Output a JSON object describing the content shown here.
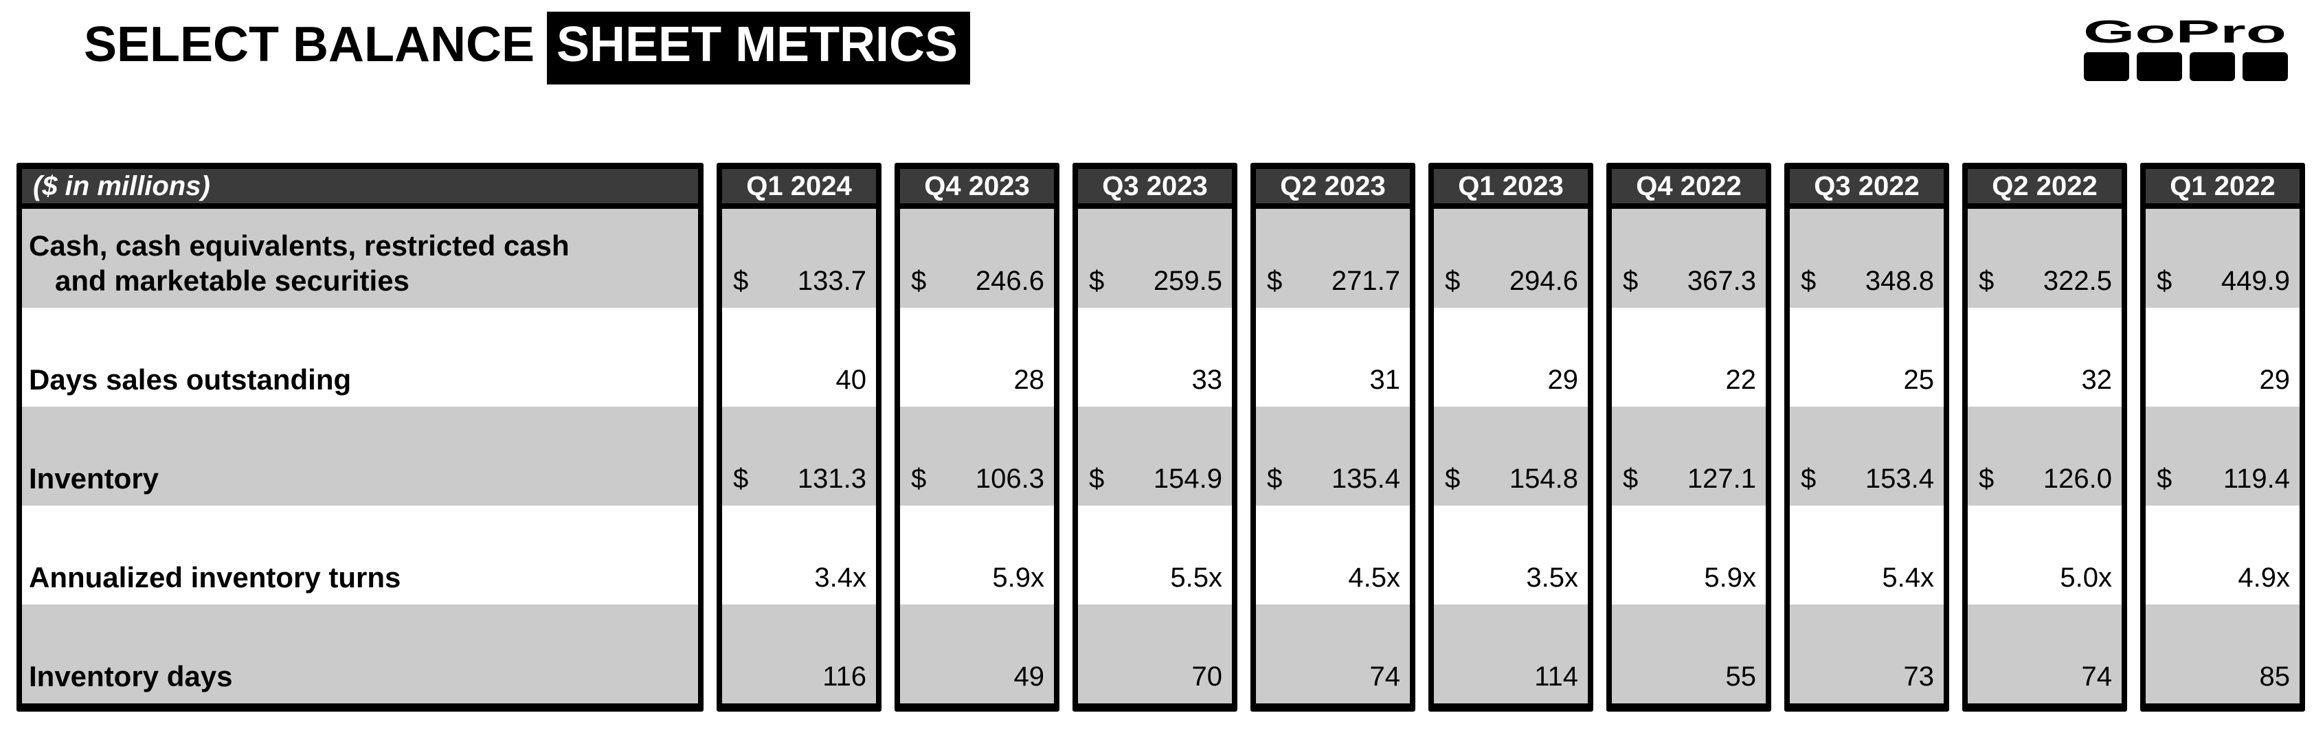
{
  "slide": {
    "title_plain": "SELECT BALANCE",
    "title_highlight": "SHEET METRICS"
  },
  "logo": {
    "wordmark": "GoPro"
  },
  "table": {
    "corner_label": "($ in millions)",
    "currency_symbol": "$",
    "columns": [
      "Q1 2024",
      "Q4 2023",
      "Q3 2023",
      "Q2 2023",
      "Q1 2023",
      "Q4 2022",
      "Q3 2022",
      "Q2 2022",
      "Q1 2022"
    ],
    "rows": [
      {
        "label_lines": [
          "Cash, cash equivalents, restricted cash",
          "and marketable securities"
        ],
        "currency": true,
        "values": [
          "133.7",
          "246.6",
          "259.5",
          "271.7",
          "294.6",
          "367.3",
          "348.8",
          "322.5",
          "449.9"
        ]
      },
      {
        "label_lines": [
          "Days sales outstanding"
        ],
        "currency": false,
        "values": [
          "40",
          "28",
          "33",
          "31",
          "29",
          "22",
          "25",
          "32",
          "29"
        ]
      },
      {
        "label_lines": [
          "Inventory"
        ],
        "currency": true,
        "values": [
          "131.3",
          "106.3",
          "154.9",
          "135.4",
          "154.8",
          "127.1",
          "153.4",
          "126.0",
          "119.4"
        ]
      },
      {
        "label_lines": [
          "Annualized inventory turns"
        ],
        "currency": false,
        "values": [
          "3.4x",
          "5.9x",
          "5.5x",
          "4.5x",
          "3.5x",
          "5.9x",
          "5.4x",
          "5.0x",
          "4.9x"
        ]
      },
      {
        "label_lines": [
          "Inventory days"
        ],
        "currency": false,
        "values": [
          "116",
          "49",
          "70",
          "74",
          "114",
          "55",
          "73",
          "74",
          "85"
        ]
      }
    ]
  },
  "colors": {
    "header_bg": "#3b3b3b",
    "band_gray": "#cbcbcb",
    "border": "#000000",
    "highlight_bg": "#000000",
    "highlight_text": "#ffffff"
  },
  "chart_data": {
    "type": "table",
    "title": "SELECT BALANCE SHEET METRICS ($ in millions)",
    "categories": [
      "Q1 2024",
      "Q4 2023",
      "Q3 2023",
      "Q2 2023",
      "Q1 2023",
      "Q4 2022",
      "Q3 2022",
      "Q2 2022",
      "Q1 2022"
    ],
    "series": [
      {
        "name": "Cash, cash equivalents, restricted cash and marketable securities ($M)",
        "values": [
          133.7,
          246.6,
          259.5,
          271.7,
          294.6,
          367.3,
          348.8,
          322.5,
          449.9
        ]
      },
      {
        "name": "Days sales outstanding",
        "values": [
          40,
          28,
          33,
          31,
          29,
          22,
          25,
          32,
          29
        ]
      },
      {
        "name": "Inventory ($M)",
        "values": [
          131.3,
          106.3,
          154.9,
          135.4,
          154.8,
          127.1,
          153.4,
          126.0,
          119.4
        ]
      },
      {
        "name": "Annualized inventory turns (x)",
        "values": [
          3.4,
          5.9,
          5.5,
          4.5,
          3.5,
          5.9,
          5.4,
          5.0,
          4.9
        ]
      },
      {
        "name": "Inventory days",
        "values": [
          116,
          49,
          70,
          74,
          114,
          55,
          73,
          74,
          85
        ]
      }
    ]
  }
}
